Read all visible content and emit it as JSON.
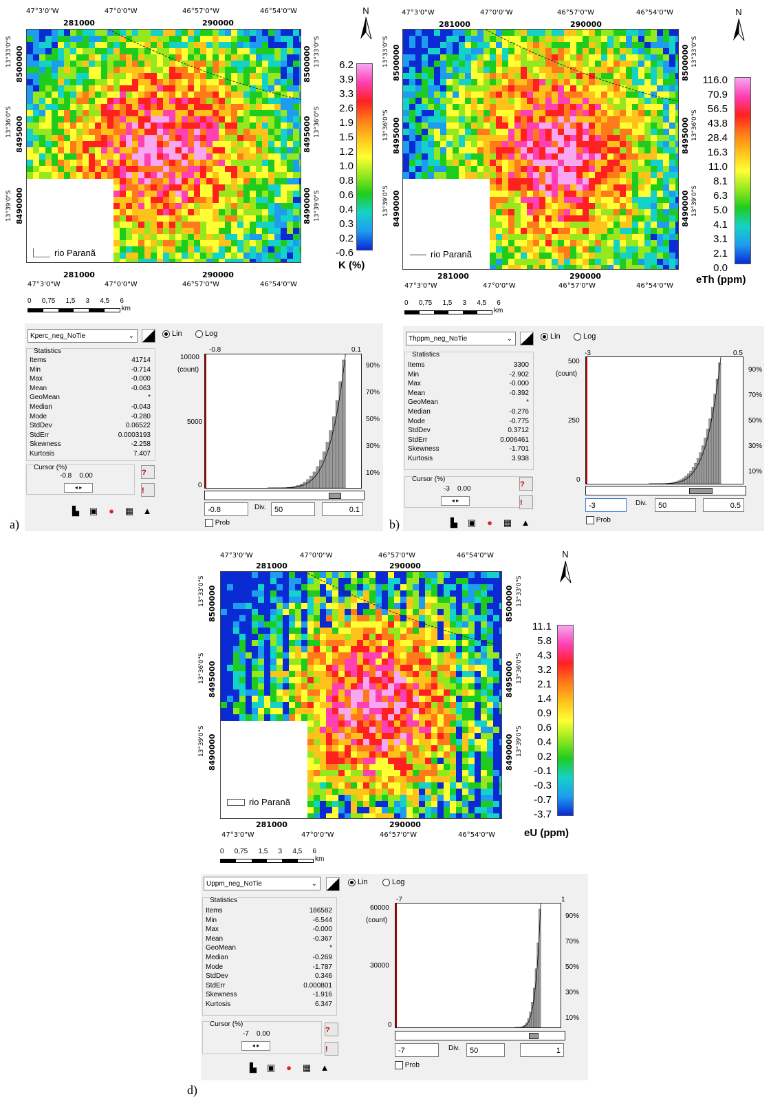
{
  "panels": [
    {
      "id": "a",
      "caption": "a)",
      "map": {
        "top_lon_labels": [
          "47°3'0\"W",
          "47°0'0\"W",
          "46°57'0\"W",
          "46°54'0\"W"
        ],
        "top_utm_labels": [
          "281000",
          "290000"
        ],
        "bottom_utm_labels": [
          "281000",
          "290000"
        ],
        "bottom_lon_labels": [
          "47°3'0\"W",
          "47°0'0\"W",
          "46°57'0\"W",
          "46°54'0\"W"
        ],
        "left_lat_labels": [
          "13°33'0\"S",
          "13°36'0\"S",
          "13°39'0\"S"
        ],
        "left_utm_labels": [
          "8500000",
          "8495000",
          "8490000"
        ],
        "right_lat_labels": [
          "13°33'0\"S",
          "13°36'0\"S",
          "13°39'0\"S"
        ],
        "right_utm_labels": [
          "8500000",
          "8495000",
          "8490000"
        ],
        "legend_label": "rio Paranã",
        "north": "N",
        "scale_labels": [
          "0",
          "0,75",
          "1,5",
          "3",
          "4,5",
          "6"
        ],
        "scale_unit": "km",
        "colorbar_title": "K (%)",
        "colorbar_values": [
          "6.2",
          "3.9",
          "3.3",
          "2.6",
          "1.9",
          "1.5",
          "1.2",
          "1.0",
          "0.8",
          "0.6",
          "0.4",
          "0.3",
          "0.2",
          "-0.6"
        ]
      },
      "stats": {
        "dataset": "Kperc_neg_NoTie",
        "lin": "Lin",
        "log": "Log",
        "header": "Statistics",
        "rows": [
          [
            "Items",
            "41714"
          ],
          [
            "Min",
            "-0.714"
          ],
          [
            "Max",
            "-0.000"
          ],
          [
            "Mean",
            "-0.063"
          ],
          [
            "GeoMean",
            "*"
          ],
          [
            "Median",
            "-0.043"
          ],
          [
            "Mode",
            "-0.280"
          ],
          [
            "StdDev",
            "0.06522"
          ],
          [
            "StdErr",
            "0.0003193"
          ],
          [
            "Skewness",
            "-2.258"
          ],
          [
            "Kurtosis",
            "7.407"
          ]
        ],
        "cursor_label": "Cursor (%)",
        "cursor_values": [
          "-0.8",
          "0.00"
        ],
        "hist_xmin": "-0.8",
        "hist_xmax": "0.1",
        "hist_yticks": [
          "10000",
          "5000",
          "0"
        ],
        "hist_ylabel": "(count)",
        "hist_pct": [
          "90%",
          "70%",
          "50%",
          "30%",
          "10%"
        ],
        "min_input": "-0.8",
        "div_label": "Div.",
        "div_value": "50",
        "max_input": "0.1",
        "prob_label": "Prob"
      }
    },
    {
      "id": "b",
      "caption": "b)",
      "map": {
        "top_lon_labels": [
          "47°3'0\"W",
          "47°0'0\"W",
          "46°57'0\"W",
          "46°54'0\"W"
        ],
        "top_utm_labels": [
          "281000",
          "290000"
        ],
        "bottom_utm_labels": [
          "281000",
          "290000"
        ],
        "bottom_lon_labels": [
          "47°3'0\"W",
          "47°0'0\"W",
          "46°57'0\"W",
          "46°54'0\"W"
        ],
        "left_lat_labels": [
          "13°33'0\"S",
          "13°36'0\"S",
          "13°39'0\"S"
        ],
        "left_utm_labels": [
          "8500000",
          "8495000",
          "8490000"
        ],
        "right_lat_labels": [
          "13°33'0\"S",
          "13°36'0\"S",
          "13°39'0\"S"
        ],
        "right_utm_labels": [
          "8500000",
          "8495000",
          "8490000"
        ],
        "legend_label": "rio Paranã",
        "north": "N",
        "scale_labels": [
          "0",
          "0,75",
          "1,5",
          "3",
          "4,5",
          "6"
        ],
        "scale_unit": "km",
        "colorbar_title": "eTh (ppm)",
        "colorbar_values": [
          "116.0",
          "70.9",
          "56.5",
          "43.8",
          "28.4",
          "16.3",
          "11.0",
          "8.1",
          "6.3",
          "5.0",
          "4.1",
          "3.1",
          "2.1",
          "0.0"
        ]
      },
      "stats": {
        "dataset": "Thppm_neg_NoTie",
        "lin": "Lin",
        "log": "Log",
        "header": "Statistics",
        "rows": [
          [
            "Items",
            "3300"
          ],
          [
            "Min",
            "-2.902"
          ],
          [
            "Max",
            "-0.000"
          ],
          [
            "Mean",
            "-0.392"
          ],
          [
            "GeoMean",
            "*"
          ],
          [
            "Median",
            "-0.276"
          ],
          [
            "Mode",
            "-0.775"
          ],
          [
            "StdDev",
            "0.3712"
          ],
          [
            "StdErr",
            "0.006461"
          ],
          [
            "Skewness",
            "-1.701"
          ],
          [
            "Kurtosis",
            "3.938"
          ]
        ],
        "cursor_label": "Cursor (%)",
        "cursor_values": [
          "-3",
          "0.00"
        ],
        "hist_xmin": "-3",
        "hist_xmax": "0.5",
        "hist_yticks": [
          "500",
          "250",
          "0"
        ],
        "hist_ylabel": "(count)",
        "hist_pct": [
          "90%",
          "70%",
          "50%",
          "30%",
          "10%"
        ],
        "min_input": "-3",
        "div_label": "Div.",
        "div_value": "50",
        "max_input": "0.5",
        "prob_label": "Prob"
      }
    },
    {
      "id": "d",
      "caption": "d)",
      "map": {
        "top_lon_labels": [
          "47°3'0\"W",
          "47°0'0\"W",
          "46°57'0\"W",
          "46°54'0\"W"
        ],
        "top_utm_labels": [
          "281000",
          "290000"
        ],
        "bottom_utm_labels": [
          "281000",
          "290000"
        ],
        "bottom_lon_labels": [
          "47°3'0\"W",
          "47°0'0\"W",
          "46°57'0\"W",
          "46°54'0\"W"
        ],
        "left_lat_labels": [
          "13°33'0\"S",
          "13°36'0\"S",
          "13°39'0\"S"
        ],
        "left_utm_labels": [
          "8500000",
          "8495000",
          "8490000"
        ],
        "right_lat_labels": [
          "13°33'0\"S",
          "13°36'0\"S",
          "13°39'0\"S"
        ],
        "right_utm_labels": [
          "8500000",
          "8495000",
          "8490000"
        ],
        "legend_label": "rio Paranã",
        "north": "N",
        "scale_labels": [
          "0",
          "0,75",
          "1,5",
          "3",
          "4,5",
          "6"
        ],
        "scale_unit": "km",
        "colorbar_title": "eU (ppm)",
        "colorbar_values": [
          "11.1",
          "5.8",
          "4.3",
          "3.2",
          "2.1",
          "1.4",
          "0.9",
          "0.6",
          "0.4",
          "0.2",
          "-0.1",
          "-0.3",
          "-0.7",
          "-3.7"
        ]
      },
      "stats": {
        "dataset": "Uppm_neg_NoTie",
        "lin": "Lin",
        "log": "Log",
        "header": "Statistics",
        "rows": [
          [
            "Items",
            "186582"
          ],
          [
            "Min",
            "-6.544"
          ],
          [
            "Max",
            "-0.000"
          ],
          [
            "Mean",
            "-0.367"
          ],
          [
            "GeoMean",
            "*"
          ],
          [
            "Median",
            "-0.269"
          ],
          [
            "Mode",
            "-1.787"
          ],
          [
            "StdDev",
            "0.346"
          ],
          [
            "StdErr",
            "0.000801"
          ],
          [
            "Skewness",
            "-1.916"
          ],
          [
            "Kurtosis",
            "6.347"
          ]
        ],
        "cursor_label": "Cursor (%)",
        "cursor_values": [
          "-7",
          "0.00"
        ],
        "hist_xmin": "-7",
        "hist_xmax": "1",
        "hist_yticks": [
          "60000",
          "30000",
          "0"
        ],
        "hist_ylabel": "(count)",
        "hist_pct": [
          "90%",
          "70%",
          "50%",
          "30%",
          "10%"
        ],
        "min_input": "-7",
        "div_label": "Div.",
        "div_value": "50",
        "max_input": "1",
        "prob_label": "Prob"
      }
    }
  ],
  "colors": {
    "ramp": [
      "#f7a8f0",
      "#ff3fb4",
      "#ff2020",
      "#ff7a1a",
      "#ffc21a",
      "#ffff33",
      "#96e81e",
      "#1ecc1e",
      "#15d2c8",
      "#1e9cf0",
      "#0a2ad4"
    ],
    "histogram_fill": "#9a9a9a",
    "histogram_cursor": "#b00000"
  }
}
